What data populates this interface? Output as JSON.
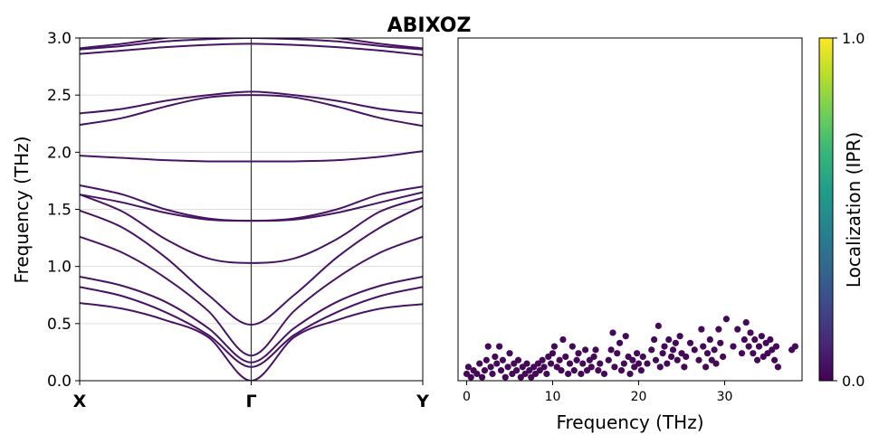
{
  "title": "ABIXOZ",
  "colors": {
    "band": "#471365",
    "point": "#440a57",
    "vline": "#333333",
    "grid": "#dddddd",
    "colormap": [
      "#440154",
      "#482878",
      "#3e4989",
      "#31688e",
      "#26828e",
      "#1f9e89",
      "#35b779",
      "#6ece58",
      "#b5de2b",
      "#fde725"
    ]
  },
  "chart_data": [
    {
      "type": "line",
      "name": "band-structure",
      "ylabel": "Frequency (THz)",
      "ylim": [
        0,
        3.0
      ],
      "yticks": [
        "0.0",
        "0.5",
        "1.0",
        "1.5",
        "2.0",
        "2.5",
        "3.0"
      ],
      "xticks": [
        "X",
        "Γ",
        "Y"
      ],
      "grid": "horizontal",
      "k_positions": [
        0,
        0.125,
        0.25,
        0.375,
        0.5,
        0.625,
        0.75,
        0.875,
        1.0
      ],
      "series": [
        {
          "values": [
            0.68,
            0.63,
            0.53,
            0.38,
            0.0,
            0.38,
            0.53,
            0.63,
            0.67
          ]
        },
        {
          "values": [
            0.82,
            0.74,
            0.6,
            0.4,
            0.12,
            0.4,
            0.6,
            0.74,
            0.82
          ]
        },
        {
          "values": [
            0.91,
            0.83,
            0.69,
            0.46,
            0.16,
            0.46,
            0.69,
            0.83,
            0.91
          ]
        },
        {
          "values": [
            1.26,
            1.12,
            0.9,
            0.61,
            0.22,
            0.61,
            0.9,
            1.12,
            1.26
          ]
        },
        {
          "values": [
            1.49,
            1.34,
            1.08,
            0.75,
            0.49,
            0.75,
            1.08,
            1.34,
            1.53
          ]
        },
        {
          "values": [
            1.63,
            1.48,
            1.24,
            1.07,
            1.03,
            1.07,
            1.24,
            1.48,
            1.6
          ]
        },
        {
          "values": [
            1.63,
            1.56,
            1.47,
            1.41,
            1.4,
            1.41,
            1.47,
            1.56,
            1.65
          ]
        },
        {
          "values": [
            1.71,
            1.63,
            1.5,
            1.42,
            1.4,
            1.42,
            1.5,
            1.63,
            1.7
          ]
        },
        {
          "values": [
            1.97,
            1.95,
            1.93,
            1.92,
            1.92,
            1.92,
            1.93,
            1.96,
            2.01
          ]
        },
        {
          "values": [
            2.24,
            2.3,
            2.4,
            2.48,
            2.5,
            2.48,
            2.4,
            2.3,
            2.23
          ]
        },
        {
          "values": [
            2.34,
            2.38,
            2.45,
            2.5,
            2.53,
            2.5,
            2.45,
            2.38,
            2.34
          ]
        },
        {
          "values": [
            2.86,
            2.89,
            2.92,
            2.94,
            2.95,
            2.94,
            2.92,
            2.89,
            2.85
          ]
        },
        {
          "values": [
            2.9,
            2.93,
            2.97,
            2.99,
            3.0,
            2.99,
            2.97,
            2.93,
            2.9
          ]
        },
        {
          "values": [
            2.91,
            2.95,
            3.0,
            3.03,
            3.05,
            3.03,
            3.0,
            2.95,
            2.91
          ]
        }
      ]
    },
    {
      "type": "scatter",
      "name": "localization",
      "xlabel": "Frequency (THz)",
      "xlim": [
        -1,
        39
      ],
      "ylim": [
        0,
        1.0
      ],
      "xticks": [
        "0",
        "10",
        "20",
        "30"
      ],
      "points": [
        [
          0.0,
          0.02
        ],
        [
          0.2,
          0.04
        ],
        [
          0.5,
          0.01
        ],
        [
          0.8,
          0.03
        ],
        [
          1.2,
          0.02
        ],
        [
          1.5,
          0.05
        ],
        [
          1.8,
          0.01
        ],
        [
          2.1,
          0.03
        ],
        [
          2.3,
          0.06
        ],
        [
          2.5,
          0.1
        ],
        [
          2.8,
          0.04
        ],
        [
          3.0,
          0.02
        ],
        [
          3.3,
          0.07
        ],
        [
          3.5,
          0.05
        ],
        [
          3.8,
          0.1
        ],
        [
          4.0,
          0.03
        ],
        [
          4.2,
          0.06
        ],
        [
          4.5,
          0.01
        ],
        [
          4.8,
          0.04
        ],
        [
          5.0,
          0.08
        ],
        [
          5.3,
          0.02
        ],
        [
          5.5,
          0.05
        ],
        [
          5.8,
          0.03
        ],
        [
          6.0,
          0.06
        ],
        [
          6.3,
          0.01
        ],
        [
          6.5,
          0.04
        ],
        [
          6.8,
          0.02
        ],
        [
          7.0,
          0.05
        ],
        [
          7.3,
          0.03
        ],
        [
          7.5,
          0.01
        ],
        [
          7.8,
          0.04
        ],
        [
          8.0,
          0.02
        ],
        [
          8.3,
          0.05
        ],
        [
          8.5,
          0.03
        ],
        [
          8.8,
          0.06
        ],
        [
          9.0,
          0.04
        ],
        [
          9.3,
          0.02
        ],
        [
          9.5,
          0.07
        ],
        [
          9.8,
          0.05
        ],
        [
          10.0,
          0.08
        ],
        [
          10.2,
          0.1
        ],
        [
          10.5,
          0.04
        ],
        [
          10.8,
          0.06
        ],
        [
          11.0,
          0.03
        ],
        [
          11.2,
          0.12
        ],
        [
          11.5,
          0.07
        ],
        [
          11.8,
          0.02
        ],
        [
          12.0,
          0.05
        ],
        [
          12.3,
          0.1
        ],
        [
          12.5,
          0.03
        ],
        [
          12.8,
          0.06
        ],
        [
          13.0,
          0.08
        ],
        [
          13.3,
          0.02
        ],
        [
          13.5,
          0.05
        ],
        [
          13.8,
          0.09
        ],
        [
          14.0,
          0.03
        ],
        [
          14.3,
          0.06
        ],
        [
          14.5,
          0.04
        ],
        [
          14.8,
          0.07
        ],
        [
          15.0,
          0.09
        ],
        [
          15.3,
          0.03
        ],
        [
          15.5,
          0.05
        ],
        [
          16.0,
          0.02
        ],
        [
          16.5,
          0.06
        ],
        [
          16.8,
          0.09
        ],
        [
          17.0,
          0.14
        ],
        [
          17.2,
          0.04
        ],
        [
          17.5,
          0.08
        ],
        [
          17.8,
          0.11
        ],
        [
          18.0,
          0.03
        ],
        [
          18.3,
          0.05
        ],
        [
          18.5,
          0.13
        ],
        [
          18.8,
          0.07
        ],
        [
          19.0,
          0.02
        ],
        [
          19.3,
          0.06
        ],
        [
          19.5,
          0.04
        ],
        [
          19.8,
          0.08
        ],
        [
          20.0,
          0.05
        ],
        [
          20.3,
          0.03
        ],
        [
          20.5,
          0.07
        ],
        [
          21.0,
          0.05
        ],
        [
          21.5,
          0.09
        ],
        [
          21.8,
          0.12
        ],
        [
          22.0,
          0.06
        ],
        [
          22.3,
          0.16
        ],
        [
          22.5,
          0.04
        ],
        [
          22.8,
          0.08
        ],
        [
          23.0,
          0.1
        ],
        [
          23.3,
          0.05
        ],
        [
          23.5,
          0.12
        ],
        [
          23.8,
          0.07
        ],
        [
          24.0,
          0.09
        ],
        [
          24.3,
          0.11
        ],
        [
          24.5,
          0.06
        ],
        [
          24.8,
          0.13
        ],
        [
          25.0,
          0.08
        ],
        [
          25.3,
          0.04
        ],
        [
          25.5,
          0.07
        ],
        [
          26.0,
          0.11
        ],
        [
          26.5,
          0.09
        ],
        [
          27.0,
          0.06
        ],
        [
          27.3,
          0.15
        ],
        [
          27.5,
          0.1
        ],
        [
          27.8,
          0.04
        ],
        [
          28.0,
          0.08
        ],
        [
          28.3,
          0.12
        ],
        [
          28.5,
          0.06
        ],
        [
          28.8,
          0.09
        ],
        [
          29.0,
          0.05
        ],
        [
          29.3,
          0.15
        ],
        [
          29.5,
          0.11
        ],
        [
          29.8,
          0.07
        ],
        [
          30.2,
          0.18
        ],
        [
          31.0,
          0.1
        ],
        [
          31.5,
          0.15
        ],
        [
          32.0,
          0.08
        ],
        [
          32.3,
          0.12
        ],
        [
          32.5,
          0.17
        ],
        [
          32.8,
          0.1
        ],
        [
          33.0,
          0.14
        ],
        [
          33.3,
          0.08
        ],
        [
          33.5,
          0.12
        ],
        [
          33.8,
          0.06
        ],
        [
          34.0,
          0.1
        ],
        [
          34.3,
          0.13
        ],
        [
          34.5,
          0.07
        ],
        [
          34.8,
          0.11
        ],
        [
          35.0,
          0.08
        ],
        [
          35.3,
          0.12
        ],
        [
          35.5,
          0.09
        ],
        [
          35.8,
          0.06
        ],
        [
          36.0,
          0.1
        ],
        [
          36.2,
          0.04
        ],
        [
          37.8,
          0.09
        ],
        [
          38.2,
          0.1
        ]
      ]
    },
    {
      "type": "colorbar",
      "name": "colorbar",
      "label": "Localization (IPR)",
      "range": [
        0.0,
        1.0
      ],
      "ticks": [
        "0.0",
        "1.0"
      ]
    }
  ]
}
